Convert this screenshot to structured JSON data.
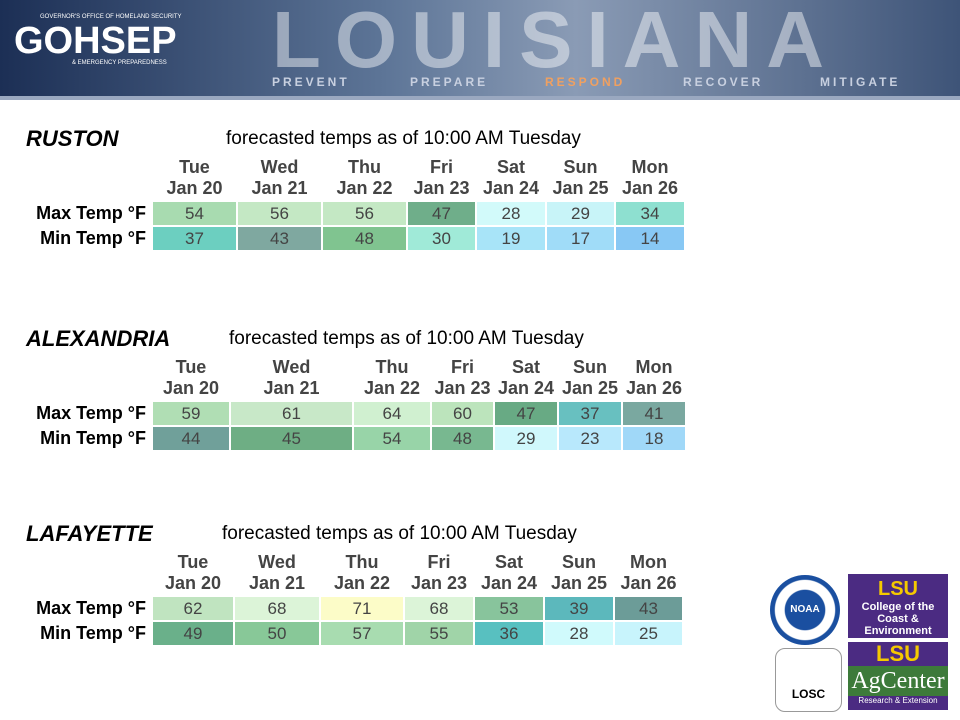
{
  "header": {
    "org": "GOVERNOR'S OFFICE OF HOMELAND SECURITY",
    "logo": "GOHSEP",
    "org_sub": "& EMERGENCY PREPAREDNESS",
    "state": "LOUISIANA",
    "mottos": [
      "PREVENT",
      "PREPARE",
      "RESPOND",
      "RECOVER",
      "MITIGATE"
    ]
  },
  "sections": [
    {
      "city": "RUSTON",
      "subtitle": "forecasted temps as of 10:00 AM Tuesday",
      "days": [
        [
          "Tue",
          "Jan 20"
        ],
        [
          "Wed",
          "Jan 21"
        ],
        [
          "Thu",
          "Jan 22"
        ],
        [
          "Fri",
          "Jan 23"
        ],
        [
          "Sat",
          "Jan 24"
        ],
        [
          "Sun",
          "Jan 25"
        ],
        [
          "Mon",
          "Jan 26"
        ]
      ],
      "rows": [
        {
          "label": "Max Temp °F",
          "values": [
            54,
            56,
            56,
            47,
            28,
            29,
            34
          ],
          "colors": [
            "#a8dbb0",
            "#c4e8c4",
            "#c4e8c4",
            "#6fae8a",
            "#d2fafa",
            "#c8f4f8",
            "#8ee0d0"
          ]
        },
        {
          "label": "Min Temp °F",
          "values": [
            37,
            43,
            48,
            30,
            19,
            17,
            14
          ],
          "colors": [
            "#6ccfc0",
            "#7fa8a0",
            "#80c490",
            "#a0ead8",
            "#a8e4f8",
            "#a0dcf8",
            "#88c8f4"
          ]
        }
      ]
    },
    {
      "city": "ALEXANDRIA",
      "subtitle": "forecasted temps as of 10:00 AM Tuesday",
      "days": [
        [
          "Tue",
          "Jan 20"
        ],
        [
          "Wed",
          "Jan 21"
        ],
        [
          "Thu",
          "Jan 22"
        ],
        [
          "Fri",
          "Jan 23"
        ],
        [
          "Sat",
          "Jan 24"
        ],
        [
          "Sun",
          "Jan 25"
        ],
        [
          "Mon",
          "Jan 26"
        ]
      ],
      "rows": [
        {
          "label": "Max Temp °F",
          "values": [
            59,
            61,
            64,
            60,
            47,
            37,
            41
          ],
          "colors": [
            "#b0deb4",
            "#c8e8c8",
            "#d0f0d0",
            "#bce4bc",
            "#68aa84",
            "#68c0c0",
            "#7aa8a0"
          ]
        },
        {
          "label": "Min Temp °F",
          "values": [
            44,
            45,
            54,
            48,
            29,
            23,
            18
          ],
          "colors": [
            "#70a09a",
            "#6eae84",
            "#98d4a8",
            "#78b890",
            "#d0f8fc",
            "#b8e8fc",
            "#a0d8f8"
          ]
        }
      ]
    },
    {
      "city": "LAFAYETTE",
      "subtitle": "forecasted temps as of 10:00 AM Tuesday",
      "days": [
        [
          "Tue",
          "Jan 20"
        ],
        [
          "Wed",
          "Jan 21"
        ],
        [
          "Thu",
          "Jan 22"
        ],
        [
          "Fri",
          "Jan 23"
        ],
        [
          "Sat",
          "Jan 24"
        ],
        [
          "Sun",
          "Jan 25"
        ],
        [
          "Mon",
          "Jan 26"
        ]
      ],
      "rows": [
        {
          "label": "Max Temp °F",
          "values": [
            62,
            68,
            71,
            68,
            53,
            39,
            43
          ],
          "colors": [
            "#c0e4c0",
            "#dcf4d8",
            "#fcfcc8",
            "#dcf4d8",
            "#88c49c",
            "#5cb8bc",
            "#6c9c98"
          ]
        },
        {
          "label": "Min Temp °F",
          "values": [
            49,
            50,
            57,
            55,
            36,
            28,
            25
          ],
          "colors": [
            "#6ab08a",
            "#88c898",
            "#a8dcb0",
            "#a0d4a8",
            "#58c0c0",
            "#d0fafc",
            "#c8f4fc"
          ]
        }
      ]
    }
  ],
  "logos": {
    "noaa": "NOAA",
    "losc": "LOSC",
    "lsu1": "LSU",
    "lsu1_sub": "College of the Coast & Environment",
    "lsu2": "LSU",
    "lsu2_sub": "AgCenter",
    "lsu2_tag": "Research & Extension"
  }
}
